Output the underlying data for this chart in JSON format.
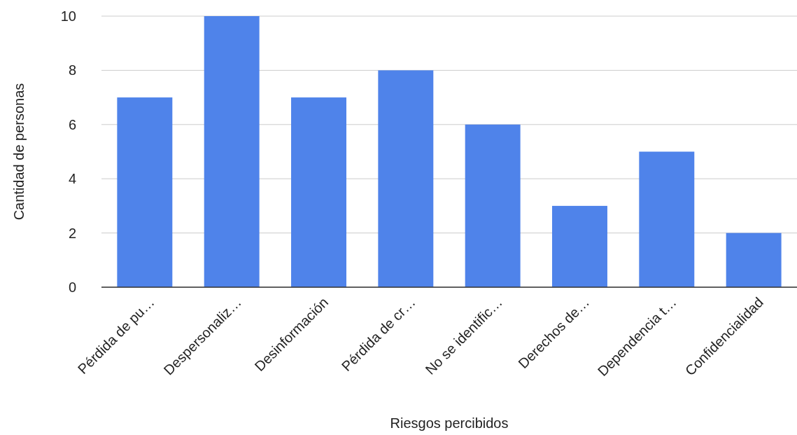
{
  "chart_data": {
    "type": "bar",
    "xlabel": "Riesgos percibidos",
    "ylabel": "Cantidad de personas",
    "categories": [
      "Pérdida de pu…",
      "Despersonaliz…",
      "Desinformación",
      "Pérdida de cr…",
      "No se identific…",
      "Derechos de…",
      "Dependencia t…",
      "Confidencialidad"
    ],
    "values": [
      7,
      10,
      7,
      8,
      6,
      3,
      5,
      2
    ],
    "color": "#4f83ea",
    "ylim": [
      0,
      10
    ],
    "yticks": [
      0,
      2,
      4,
      6,
      8,
      10
    ],
    "grid": "y"
  }
}
